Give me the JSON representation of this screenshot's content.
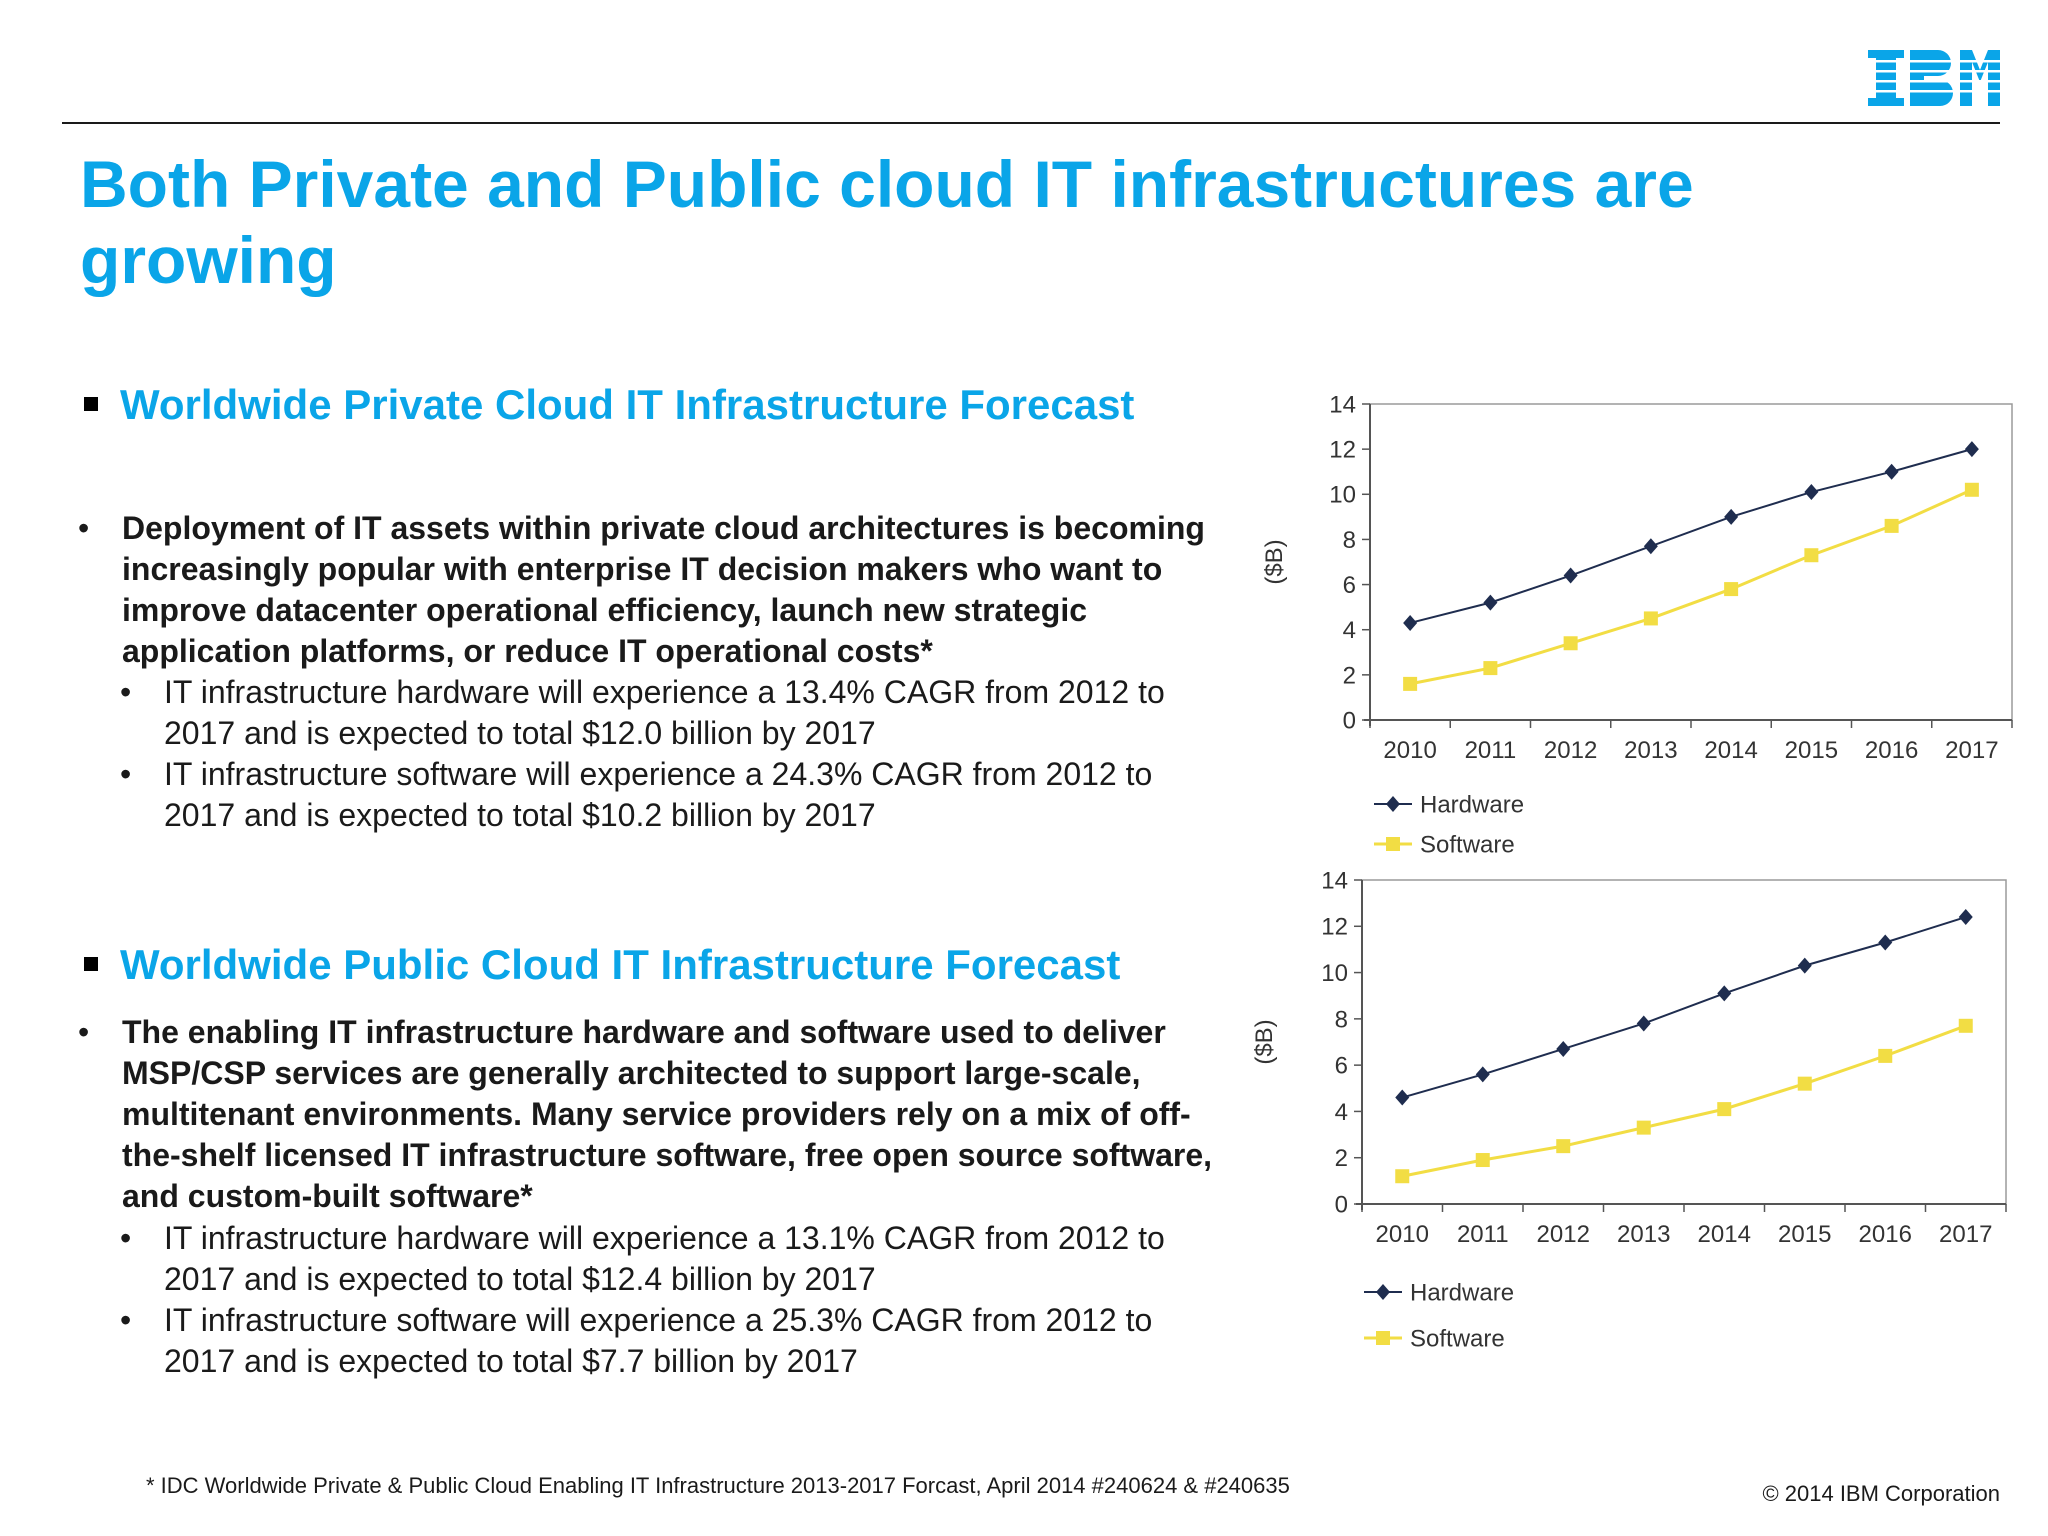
{
  "brand": {
    "logo_text": "IBM",
    "accent_color": "#0aa5e8"
  },
  "slide": {
    "title": "Both Private and Public cloud IT infrastructures are growing",
    "private": {
      "heading": "Worldwide Private Cloud IT Infrastructure Forecast",
      "bullet": "Deployment of IT assets within private cloud architectures is becoming increasingly popular with enterprise IT decision makers who want to improve datacenter operational efficiency, launch new strategic application platforms, or reduce IT operational costs*",
      "sub_bullets": [
        "IT infrastructure hardware will experience a 13.4% CAGR from 2012 to 2017 and is expected to total $12.0 billion by 2017",
        "IT infrastructure software will experience a 24.3% CAGR from 2012 to 2017 and is expected to total $10.2 billion by 2017"
      ]
    },
    "public": {
      "heading": "Worldwide Public Cloud IT Infrastructure Forecast",
      "bullet": "The enabling IT infrastructure hardware and software used to deliver MSP/CSP services are generally architected to support large-scale, multitenant environments. Many service providers rely on a mix of off-the-shelf licensed IT infrastructure software, free open source software, and custom-built software*",
      "sub_bullets": [
        "IT infrastructure hardware will experience a 13.1% CAGR from 2012 to 2017 and is expected to total $12.4 billion by 2017",
        "IT infrastructure software will experience a 25.3% CAGR from 2012 to 2017 and is expected to total $7.7 billion by 2017"
      ]
    },
    "footnote": "* IDC Worldwide Private & Public Cloud Enabling IT Infrastructure 2013-2017 Forcast, April 2014 #240624 & #240635",
    "copyright": "© 2014 IBM Corporation"
  },
  "chart_data": [
    {
      "type": "line",
      "ylabel": "($B)",
      "x": [
        "2010",
        "2011",
        "2012",
        "2013",
        "2014",
        "2015",
        "2016",
        "2017"
      ],
      "ylim": [
        0,
        14
      ],
      "yticks": [
        "0",
        "2",
        "4",
        "6",
        "8",
        "10",
        "12",
        "14"
      ],
      "grid": false,
      "legend": "bottom-left",
      "series": [
        {
          "name": "Hardware",
          "color": "#1f2d4f",
          "marker": "diamond",
          "values": [
            4.3,
            5.2,
            6.4,
            7.7,
            9.0,
            10.1,
            11.0,
            12.0
          ]
        },
        {
          "name": "Software",
          "color": "#f2dd44",
          "marker": "square",
          "values": [
            1.6,
            2.3,
            3.4,
            4.5,
            5.8,
            7.3,
            8.6,
            10.2
          ]
        }
      ]
    },
    {
      "type": "line",
      "ylabel": "($B)",
      "x": [
        "2010",
        "2011",
        "2012",
        "2013",
        "2014",
        "2015",
        "2016",
        "2017"
      ],
      "ylim": [
        0,
        14
      ],
      "yticks": [
        "0",
        "2",
        "4",
        "6",
        "8",
        "10",
        "12",
        "14"
      ],
      "grid": false,
      "legend": "bottom-left",
      "series": [
        {
          "name": "Hardware",
          "color": "#1f2d4f",
          "marker": "diamond",
          "values": [
            4.6,
            5.6,
            6.7,
            7.8,
            9.1,
            10.3,
            11.3,
            12.4
          ]
        },
        {
          "name": "Software",
          "color": "#f2dd44",
          "marker": "square",
          "values": [
            1.2,
            1.9,
            2.5,
            3.3,
            4.1,
            5.2,
            6.4,
            7.7
          ]
        }
      ]
    }
  ]
}
